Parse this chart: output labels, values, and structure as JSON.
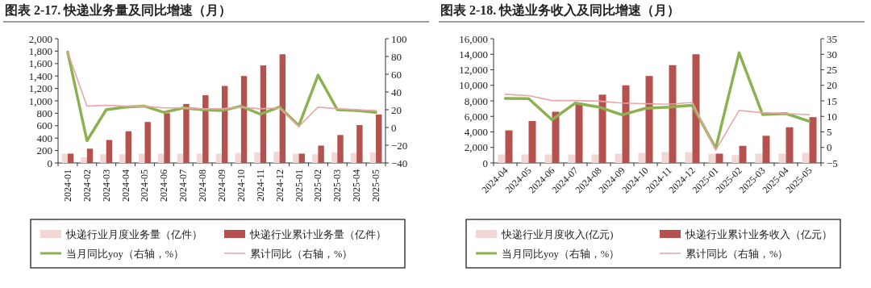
{
  "chart_data": [
    {
      "type": "bar",
      "title": "图表 2-17. 快递业务量及同比增速（月）",
      "categories": [
        "2024-01",
        "2024-02",
        "2024-03",
        "2024-04",
        "2024-05",
        "2024-06",
        "2024-07",
        "2024-08",
        "2024-09",
        "2024-10",
        "2024-11",
        "2024-12",
        "2025-01",
        "2025-02",
        "2025-03",
        "2025-04",
        "2025-05"
      ],
      "series": [
        {
          "name": "快递行业月度业务量（亿件）",
          "color": "#f2d7d5",
          "values": [
            150,
            90,
            140,
            140,
            150,
            150,
            150,
            150,
            150,
            160,
            170,
            180,
            150,
            140,
            170,
            160,
            170
          ]
        },
        {
          "name": "快递行业累计业务量（亿件）",
          "color": "#b5524e",
          "values": [
            150,
            230,
            370,
            510,
            660,
            800,
            950,
            1090,
            1240,
            1400,
            1570,
            1750,
            150,
            280,
            450,
            610,
            780
          ]
        },
        {
          "name": "当月同比yoy（右轴，%）",
          "type": "line",
          "axis": "y2",
          "color": "#8cb150",
          "values": [
            85,
            -15,
            20,
            23,
            24,
            17,
            22,
            20,
            19,
            24,
            15,
            23,
            2,
            59,
            20,
            19,
            17
          ]
        },
        {
          "name": "累计同比（右轴，%）",
          "type": "line",
          "axis": "y2",
          "color": "#e8a6a6",
          "values": [
            85,
            24,
            25,
            24,
            24,
            22,
            22,
            21,
            21,
            23,
            21,
            22,
            1,
            23,
            21,
            20,
            19
          ]
        }
      ],
      "ylim": [
        0,
        2000
      ],
      "yticks": [
        0,
        200,
        400,
        600,
        800,
        {
          "value": 1000,
          "label": "1,000"
        },
        {
          "value": 1200,
          "label": "1,200"
        },
        {
          "value": 1400,
          "label": "1,400"
        },
        {
          "value": 1600,
          "label": "1,600"
        },
        {
          "value": 1800,
          "label": "1,800"
        },
        {
          "value": 2000,
          "label": "2,000"
        }
      ],
      "y2lim": [
        -40,
        100
      ],
      "y2ticks": [
        -40,
        -20,
        0,
        20,
        40,
        60,
        80,
        100
      ],
      "legend": "bottom"
    },
    {
      "type": "bar",
      "title": "图表 2-18. 快递业务收入及同比增速（月）",
      "categories": [
        "2024-04",
        "2024-05",
        "2024-06",
        "2024-07",
        "2024-08",
        "2024-09",
        "2024-10",
        "2024-11",
        "2024-12",
        "2025-01",
        "2025-02",
        "2025-03",
        "2025-04",
        "2025-05"
      ],
      "series": [
        {
          "name": "快递行业月度收入(亿元)",
          "color": "#f2d7d5",
          "values": [
            1100,
            1100,
            1100,
            1100,
            1100,
            1200,
            1300,
            1400,
            1400,
            1200,
            1000,
            1200,
            1200,
            1300
          ]
        },
        {
          "name": "快递行业累计业务收入（亿元）",
          "color": "#b5524e",
          "values": [
            4200,
            5400,
            6600,
            7700,
            8800,
            10000,
            11200,
            12600,
            14000,
            1200,
            2200,
            3500,
            4600,
            5900
          ]
        },
        {
          "name": "当月同比yoy（右轴，%）",
          "type": "line",
          "axis": "y2",
          "color": "#8cb150",
          "values": [
            15.8,
            15.7,
            8.9,
            14.3,
            13.0,
            10.5,
            12.6,
            13.0,
            13.6,
            -0.3,
            30.5,
            10.6,
            10.9,
            8.4
          ]
        },
        {
          "name": "累计同比（右轴，%）",
          "type": "line",
          "axis": "y2",
          "color": "#e8a6a6",
          "values": [
            17.1,
            16.7,
            15.1,
            15.1,
            14.9,
            14.3,
            14.1,
            13.9,
            14.5,
            -0.9,
            11.9,
            11.2,
            10.9,
            10.5
          ]
        }
      ],
      "ylim": [
        0,
        16000
      ],
      "yticks": [
        0,
        {
          "value": 2000,
          "label": "2,000"
        },
        {
          "value": 4000,
          "label": "4,000"
        },
        {
          "value": 6000,
          "label": "6,000"
        },
        {
          "value": 8000,
          "label": "8,000"
        },
        {
          "value": 10000,
          "label": "10,000"
        },
        {
          "value": 12000,
          "label": "12,000"
        },
        {
          "value": 14000,
          "label": "14,000"
        },
        {
          "value": 16000,
          "label": "16,000"
        }
      ],
      "y2lim": [
        -5,
        35
      ],
      "y2ticks": [
        -5,
        0,
        5,
        10,
        15,
        20,
        25,
        30,
        35
      ],
      "legend": "bottom"
    }
  ]
}
